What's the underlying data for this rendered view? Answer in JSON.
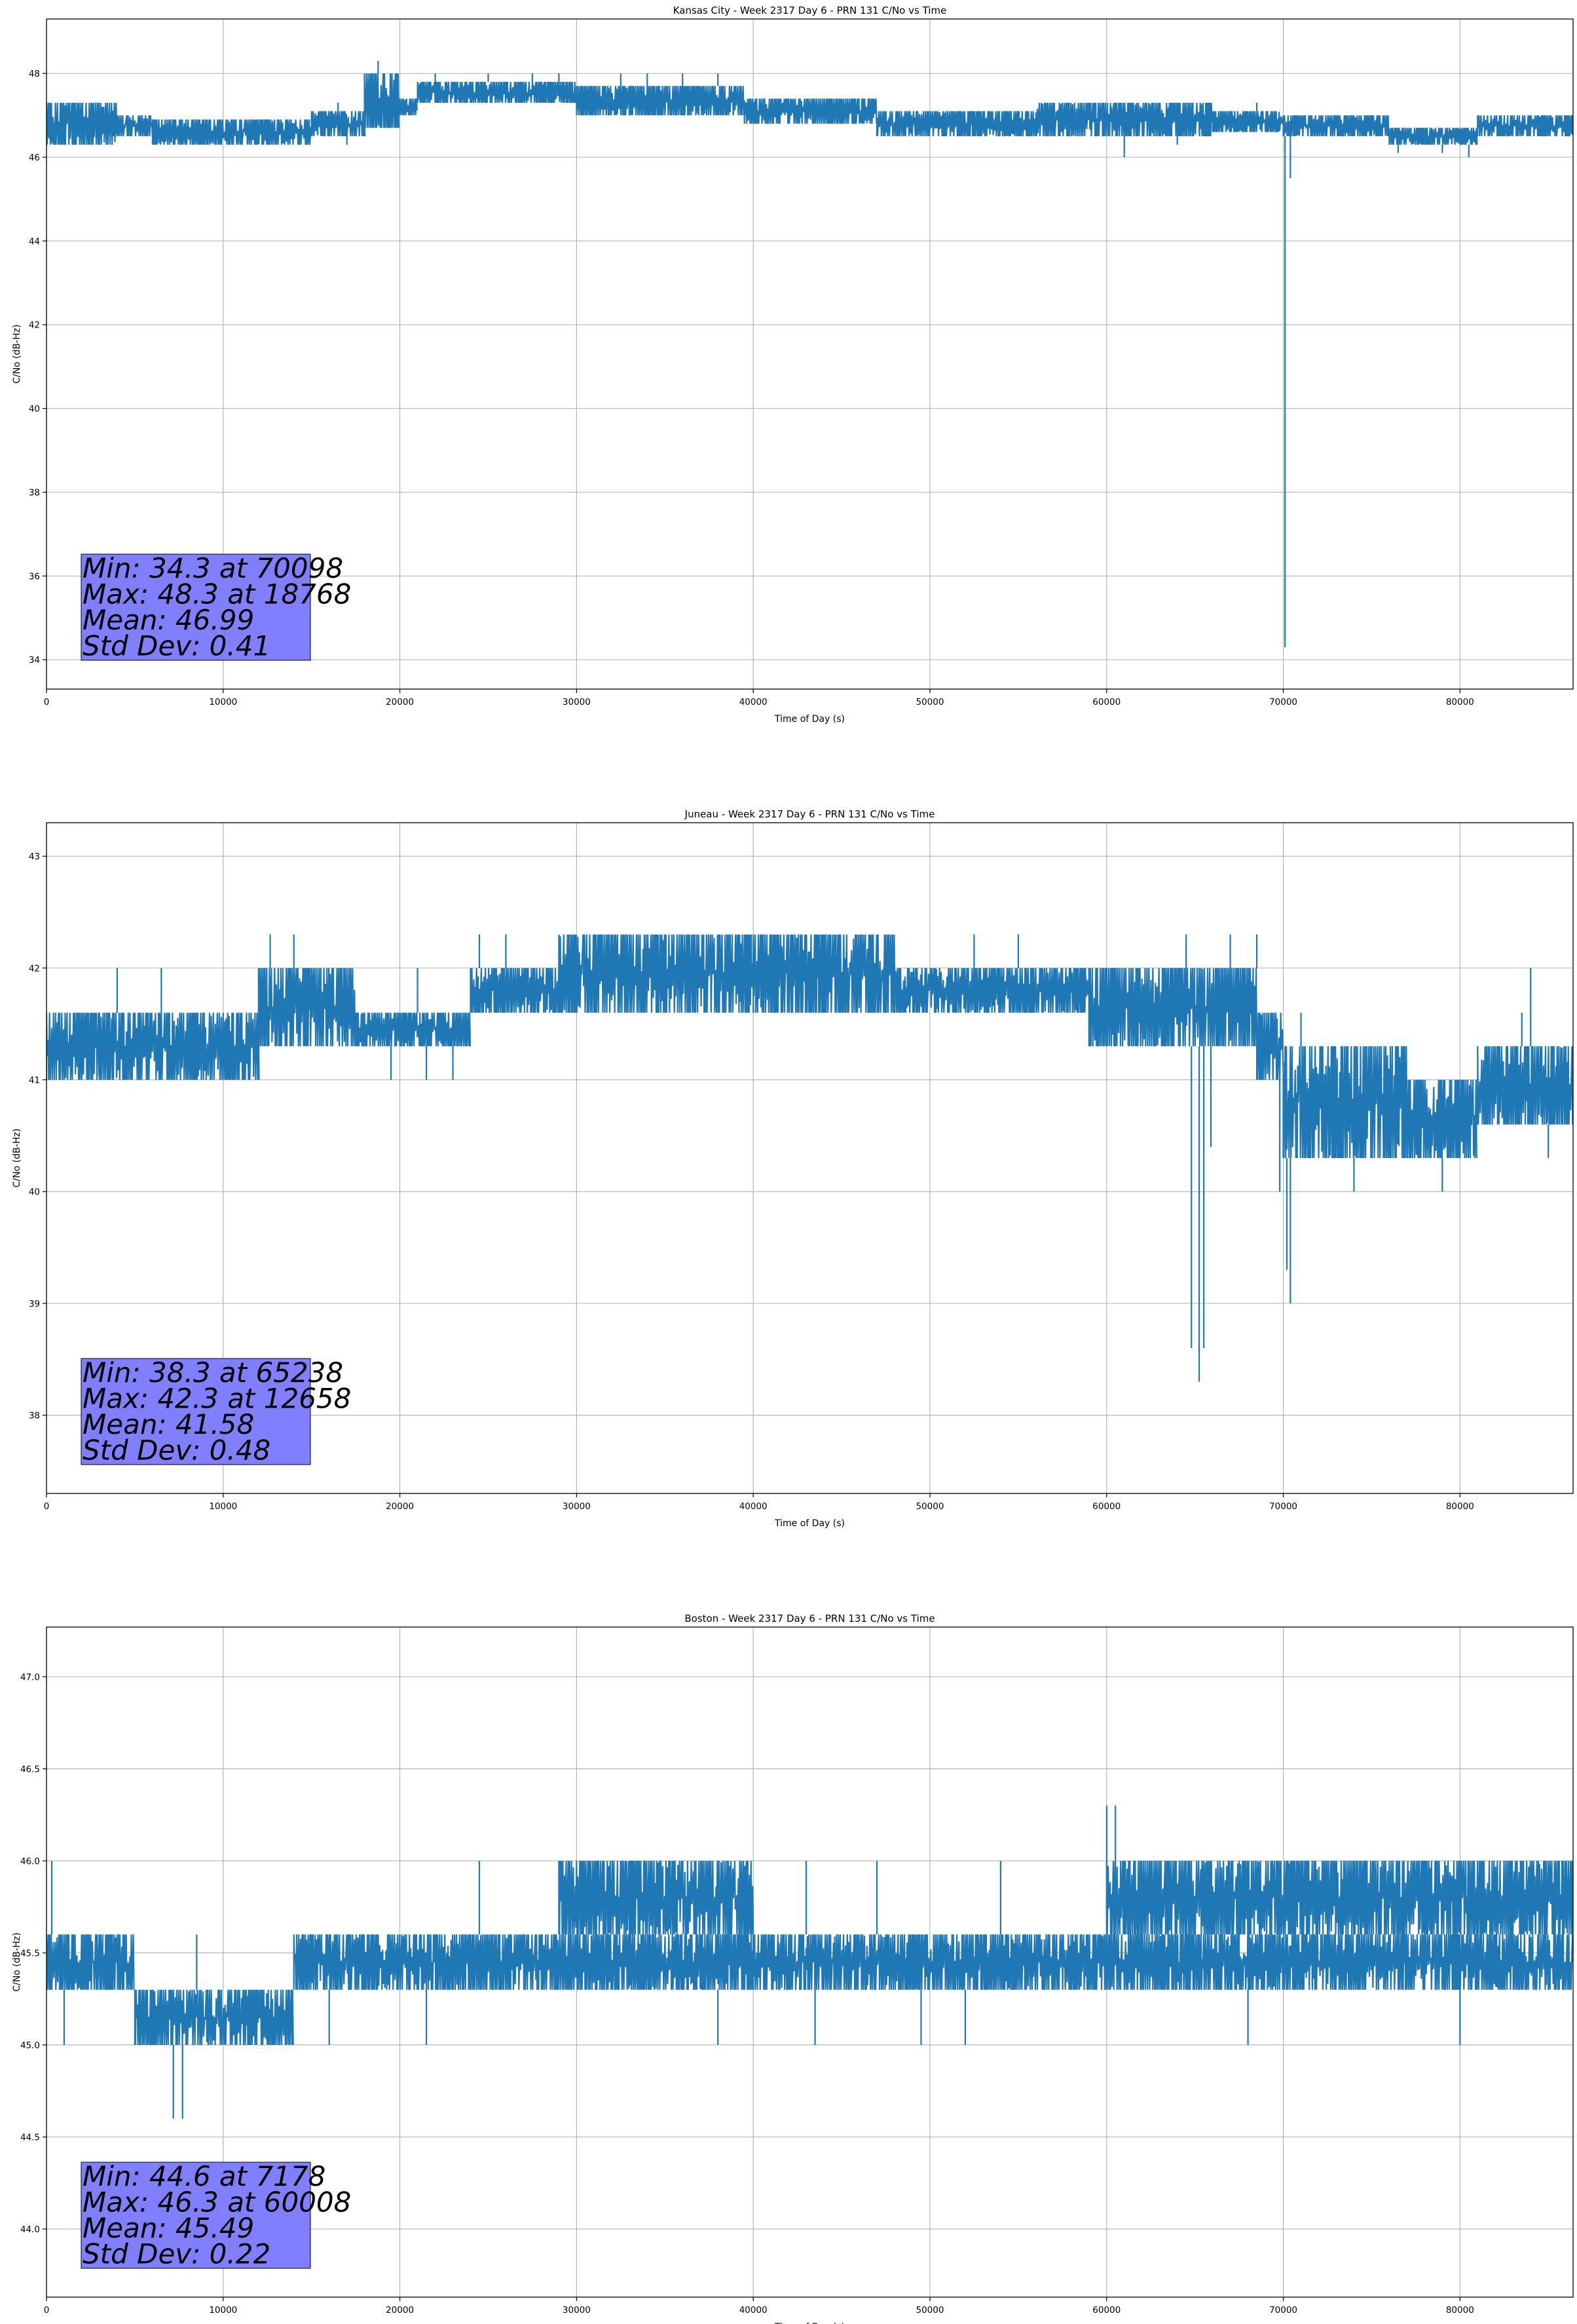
{
  "colors": {
    "series": "#1f77b4",
    "stats_box": "#7f7fff",
    "grid": "#b0b0b0"
  },
  "chart_data": [
    {
      "type": "line",
      "title": "Kansas City - Week 2317 Day 6 - PRN 131 C/No vs Time",
      "xlabel": "Time of Day (s)",
      "ylabel": "C/No (dB-Hz)",
      "xlim": [
        0,
        86400
      ],
      "ylim": [
        33.3,
        49.3
      ],
      "xticks": [
        0,
        10000,
        20000,
        30000,
        40000,
        50000,
        60000,
        70000,
        80000
      ],
      "yticks": [
        34,
        36,
        38,
        40,
        42,
        44,
        46,
        48
      ],
      "ytick_labels": [
        "34",
        "36",
        "38",
        "40",
        "42",
        "44",
        "46",
        "48"
      ],
      "grid": true,
      "stats_position": "bottom-left",
      "stats": [
        "Min: 34.3 at 70098",
        "Max: 48.3 at 18768",
        "Mean: 46.99",
        "Std Dev: 0.41"
      ],
      "series": [
        {
          "color": "#1f77b4",
          "bands": [
            {
              "x": [
                0,
                4000
              ],
              "low": 46.3,
              "high": 47.3
            },
            {
              "x": [
                4000,
                6000
              ],
              "low": 46.5,
              "high": 47.0
            },
            {
              "x": [
                6000,
                15000
              ],
              "low": 46.3,
              "high": 46.9
            },
            {
              "x": [
                15000,
                18000
              ],
              "low": 46.5,
              "high": 47.1
            },
            {
              "x": [
                18000,
                20000
              ],
              "low": 46.7,
              "high": 48.0
            },
            {
              "x": [
                20000,
                21000
              ],
              "low": 47.0,
              "high": 47.4
            },
            {
              "x": [
                21000,
                30000
              ],
              "low": 47.3,
              "high": 47.8
            },
            {
              "x": [
                30000,
                39500
              ],
              "low": 47.0,
              "high": 47.7
            },
            {
              "x": [
                39500,
                47000
              ],
              "low": 46.8,
              "high": 47.4
            },
            {
              "x": [
                47000,
                56000
              ],
              "low": 46.5,
              "high": 47.1
            },
            {
              "x": [
                56000,
                66000
              ],
              "low": 46.5,
              "high": 47.3
            },
            {
              "x": [
                66000,
                70000
              ],
              "low": 46.6,
              "high": 47.1
            },
            {
              "x": [
                70000,
                76000
              ],
              "low": 46.5,
              "high": 47.0
            },
            {
              "x": [
                76000,
                81000
              ],
              "low": 46.3,
              "high": 46.7
            },
            {
              "x": [
                81000,
                86400
              ],
              "low": 46.5,
              "high": 47.0
            }
          ],
          "spikes_up": [
            {
              "x": 3500,
              "y": 47.3
            },
            {
              "x": 16500,
              "y": 47.3
            },
            {
              "x": 18768,
              "y": 48.3
            },
            {
              "x": 19200,
              "y": 48.0
            },
            {
              "x": 22000,
              "y": 48.0
            },
            {
              "x": 25000,
              "y": 48.0
            },
            {
              "x": 27500,
              "y": 48.0
            },
            {
              "x": 29000,
              "y": 48.0
            },
            {
              "x": 32500,
              "y": 48.0
            },
            {
              "x": 34000,
              "y": 48.0
            },
            {
              "x": 36000,
              "y": 48.0
            },
            {
              "x": 38000,
              "y": 48.0
            },
            {
              "x": 56500,
              "y": 47.3
            },
            {
              "x": 66000,
              "y": 47.3
            },
            {
              "x": 68500,
              "y": 47.3
            },
            {
              "x": 82000,
              "y": 47.0
            }
          ],
          "spikes_down": [
            {
              "x": 2000,
              "y": 46.3
            },
            {
              "x": 17000,
              "y": 46.3
            },
            {
              "x": 40000,
              "y": 47.0
            },
            {
              "x": 52000,
              "y": 46.5
            },
            {
              "x": 61000,
              "y": 46.0
            },
            {
              "x": 64000,
              "y": 46.3
            },
            {
              "x": 70098,
              "y": 34.3
            },
            {
              "x": 70400,
              "y": 45.5
            },
            {
              "x": 76500,
              "y": 46.1
            },
            {
              "x": 79000,
              "y": 46.1
            },
            {
              "x": 80500,
              "y": 46.0
            }
          ]
        }
      ]
    },
    {
      "type": "line",
      "title": "Juneau - Week 2317 Day 6 - PRN 131 C/No vs Time",
      "xlabel": "Time of Day (s)",
      "ylabel": "C/No (dB-Hz)",
      "xlim": [
        0,
        86400
      ],
      "ylim": [
        37.3,
        43.3
      ],
      "xticks": [
        0,
        10000,
        20000,
        30000,
        40000,
        50000,
        60000,
        70000,
        80000
      ],
      "yticks": [
        38,
        39,
        40,
        41,
        42,
        43
      ],
      "ytick_labels": [
        "38",
        "39",
        "40",
        "41",
        "42",
        "43"
      ],
      "grid": true,
      "stats_position": "bottom-left",
      "stats": [
        "Min: 38.3 at 65238",
        "Max: 42.3 at 12658",
        "Mean: 41.58",
        "Std Dev: 0.48"
      ],
      "series": [
        {
          "color": "#1f77b4",
          "bands": [
            {
              "x": [
                0,
                3000
              ],
              "low": 41.0,
              "high": 41.6
            },
            {
              "x": [
                3000,
                12000
              ],
              "low": 41.0,
              "high": 41.6
            },
            {
              "x": [
                12000,
                17500
              ],
              "low": 41.3,
              "high": 42.0
            },
            {
              "x": [
                17500,
                24000
              ],
              "low": 41.3,
              "high": 41.6
            },
            {
              "x": [
                24000,
                29000
              ],
              "low": 41.6,
              "high": 42.0
            },
            {
              "x": [
                29000,
                40000
              ],
              "low": 41.6,
              "high": 42.3
            },
            {
              "x": [
                40000,
                48000
              ],
              "low": 41.6,
              "high": 42.3
            },
            {
              "x": [
                48000,
                59000
              ],
              "low": 41.6,
              "high": 42.0
            },
            {
              "x": [
                59000,
                68500
              ],
              "low": 41.3,
              "high": 42.0
            },
            {
              "x": [
                68500,
                70000
              ],
              "low": 41.0,
              "high": 41.6
            },
            {
              "x": [
                70000,
                77000
              ],
              "low": 40.3,
              "high": 41.3
            },
            {
              "x": [
                77000,
                81000
              ],
              "low": 40.3,
              "high": 41.0
            },
            {
              "x": [
                81000,
                86400
              ],
              "low": 40.6,
              "high": 41.3
            }
          ],
          "spikes_up": [
            {
              "x": 4000,
              "y": 42.0
            },
            {
              "x": 6500,
              "y": 42.0
            },
            {
              "x": 12658,
              "y": 42.3
            },
            {
              "x": 14000,
              "y": 42.3
            },
            {
              "x": 21000,
              "y": 42.0
            },
            {
              "x": 24500,
              "y": 42.3
            },
            {
              "x": 26000,
              "y": 42.3
            },
            {
              "x": 52500,
              "y": 42.3
            },
            {
              "x": 55000,
              "y": 42.3
            },
            {
              "x": 64500,
              "y": 42.3
            },
            {
              "x": 67000,
              "y": 42.3
            },
            {
              "x": 68500,
              "y": 42.3
            },
            {
              "x": 71000,
              "y": 41.6
            },
            {
              "x": 83500,
              "y": 41.6
            },
            {
              "x": 84000,
              "y": 42.0
            }
          ],
          "spikes_down": [
            {
              "x": 7500,
              "y": 41.0
            },
            {
              "x": 19500,
              "y": 41.0
            },
            {
              "x": 21500,
              "y": 41.0
            },
            {
              "x": 23000,
              "y": 41.0
            },
            {
              "x": 65238,
              "y": 38.3
            },
            {
              "x": 64800,
              "y": 38.6
            },
            {
              "x": 65500,
              "y": 38.6
            },
            {
              "x": 65900,
              "y": 40.4
            },
            {
              "x": 69800,
              "y": 40.0
            },
            {
              "x": 70400,
              "y": 39.0
            },
            {
              "x": 70200,
              "y": 39.3
            },
            {
              "x": 74000,
              "y": 40.0
            },
            {
              "x": 79000,
              "y": 40.0
            },
            {
              "x": 85000,
              "y": 40.3
            }
          ]
        }
      ]
    },
    {
      "type": "line",
      "title": "Boston - Week 2317 Day 6 - PRN 131 C/No vs Time",
      "xlabel": "Time of Day (s)",
      "ylabel": "C/No (dB-Hz)",
      "xlim": [
        0,
        86400
      ],
      "ylim": [
        43.63,
        47.27
      ],
      "xticks": [
        0,
        10000,
        20000,
        30000,
        40000,
        50000,
        60000,
        70000,
        80000
      ],
      "yticks": [
        44.0,
        44.5,
        45.0,
        45.5,
        46.0,
        46.5,
        47.0
      ],
      "ytick_labels": [
        "44.0",
        "44.5",
        "45.0",
        "45.5",
        "46.0",
        "46.5",
        "47.0"
      ],
      "grid": true,
      "stats_position": "bottom-left",
      "stats": [
        "Min: 44.6 at 7178",
        "Max: 46.3 at 60008",
        "Mean: 45.49",
        "Std Dev: 0.22"
      ],
      "series": [
        {
          "color": "#1f77b4",
          "bands": [
            {
              "x": [
                0,
                5000
              ],
              "low": 45.3,
              "high": 45.6
            },
            {
              "x": [
                5000,
                14000
              ],
              "low": 45.0,
              "high": 45.3
            },
            {
              "x": [
                14000,
                24000
              ],
              "low": 45.3,
              "high": 45.6
            },
            {
              "x": [
                24000,
                40000
              ],
              "low": 45.3,
              "high": 45.6
            },
            {
              "x": [
                29000,
                40000
              ],
              "low": 45.6,
              "high": 46.0
            },
            {
              "x": [
                40000,
                60000
              ],
              "low": 45.3,
              "high": 45.6
            },
            {
              "x": [
                60000,
                86400
              ],
              "low": 45.3,
              "high": 45.6
            },
            {
              "x": [
                60000,
                86400
              ],
              "low": 45.6,
              "high": 46.0
            }
          ],
          "spikes_up": [
            {
              "x": 300,
              "y": 46.0
            },
            {
              "x": 8500,
              "y": 45.6
            },
            {
              "x": 24500,
              "y": 46.0
            },
            {
              "x": 43000,
              "y": 46.0
            },
            {
              "x": 47000,
              "y": 46.0
            },
            {
              "x": 54000,
              "y": 46.0
            },
            {
              "x": 60008,
              "y": 46.3
            },
            {
              "x": 60500,
              "y": 46.3
            },
            {
              "x": 78000,
              "y": 46.0
            }
          ],
          "spikes_down": [
            {
              "x": 1000,
              "y": 45.0
            },
            {
              "x": 7178,
              "y": 44.6
            },
            {
              "x": 7700,
              "y": 44.6
            },
            {
              "x": 16000,
              "y": 45.0
            },
            {
              "x": 21500,
              "y": 45.0
            },
            {
              "x": 38000,
              "y": 45.0
            },
            {
              "x": 43500,
              "y": 45.0
            },
            {
              "x": 49500,
              "y": 45.0
            },
            {
              "x": 52000,
              "y": 45.0
            },
            {
              "x": 68000,
              "y": 45.0
            },
            {
              "x": 80000,
              "y": 45.0
            }
          ]
        }
      ]
    }
  ]
}
